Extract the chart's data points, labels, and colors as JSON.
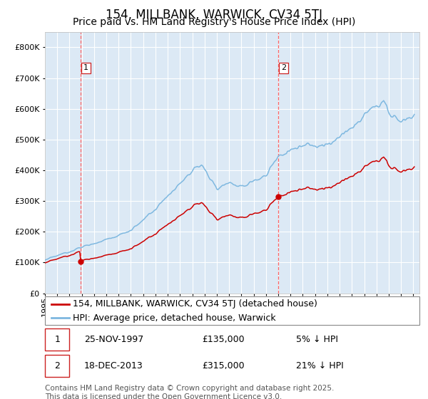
{
  "title": "154, MILLBANK, WARWICK, CV34 5TJ",
  "subtitle": "Price paid vs. HM Land Registry's House Price Index (HPI)",
  "background_color": "#ffffff",
  "plot_bg_color": "#dce9f5",
  "grid_color": "#ffffff",
  "hpi_color": "#7eb8e0",
  "price_color": "#cc0000",
  "vline_color": "#ff6666",
  "marker_color": "#cc0000",
  "ylim": [
    0,
    850000
  ],
  "yticks": [
    0,
    100000,
    200000,
    300000,
    400000,
    500000,
    600000,
    700000,
    800000
  ],
  "x_start_year": 1995,
  "x_end_year": 2025,
  "purchase1_year": 1997.9,
  "purchase1_price": 135000,
  "purchase1_label": "1",
  "purchase1_date": "25-NOV-1997",
  "purchase1_pct": "5% ↓ HPI",
  "purchase2_year": 2013.97,
  "purchase2_price": 315000,
  "purchase2_label": "2",
  "purchase2_date": "18-DEC-2013",
  "purchase2_pct": "21% ↓ HPI",
  "legend_line1": "154, MILLBANK, WARWICK, CV34 5TJ (detached house)",
  "legend_line2": "HPI: Average price, detached house, Warwick",
  "footer": "Contains HM Land Registry data © Crown copyright and database right 2025.\nThis data is licensed under the Open Government Licence v3.0.",
  "title_fontsize": 12,
  "subtitle_fontsize": 10,
  "tick_fontsize": 8,
  "legend_fontsize": 9,
  "annotation_fontsize": 9,
  "footer_fontsize": 7.5
}
